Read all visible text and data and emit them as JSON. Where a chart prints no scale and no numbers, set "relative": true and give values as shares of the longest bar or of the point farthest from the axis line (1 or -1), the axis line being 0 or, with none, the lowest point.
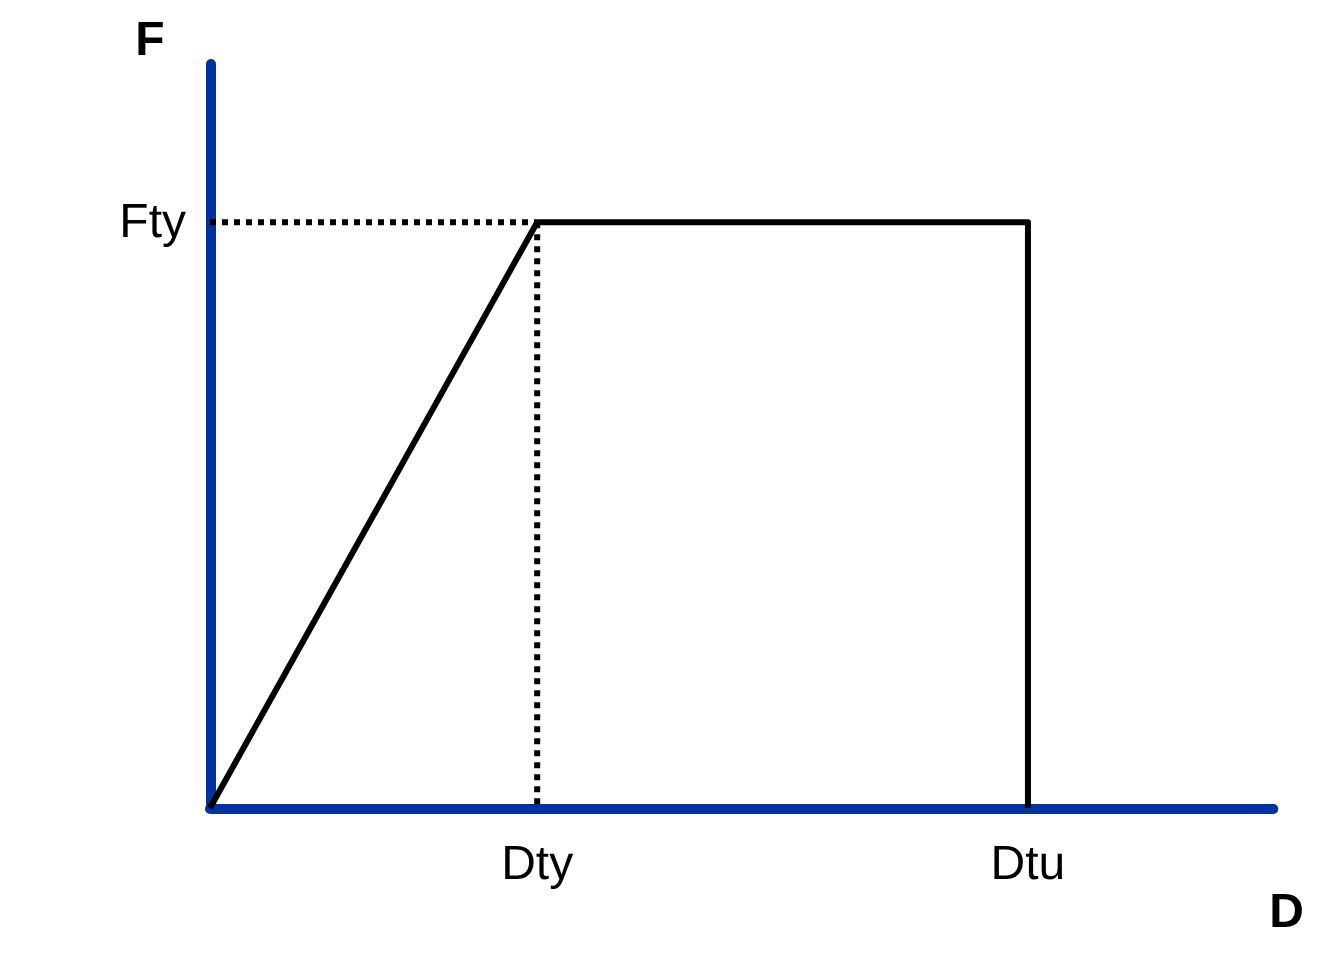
{
  "chart_data": {
    "type": "line",
    "xlabel": "D",
    "ylabel": "F",
    "relative": true,
    "categories": [
      null,
      null,
      null,
      null,
      "Dty",
      null,
      null,
      null,
      null,
      null,
      "Dtu",
      null,
      null,
      null
    ],
    "series": [
      {
        "color": "#000000",
        "values": [
          0,
          0.25,
          0.5,
          0.75,
          1,
          null,
          null,
          null,
          null,
          null,
          null,
          null,
          null,
          null
        ],
        "line_style": "solid"
      },
      {
        "color": "#000000",
        "x": [
          "Dty",
          "Dtu",
          "Dtu"
        ],
        "values": [
          1,
          1,
          0
        ],
        "line_style": "solid"
      },
      {
        "color": "#000000",
        "values": [
          1,
          1,
          1,
          1,
          1,
          null,
          null,
          null,
          null,
          null,
          null,
          null,
          null,
          null
        ],
        "line_style": "dotted"
      },
      {
        "color": "#000000",
        "x": [
          "Dty",
          "Dty"
        ],
        "values": [
          1,
          0
        ],
        "line_style": "dotted"
      }
    ],
    "annotations": [
      "Fty"
    ],
    "grid": false,
    "marker": "none"
  }
}
